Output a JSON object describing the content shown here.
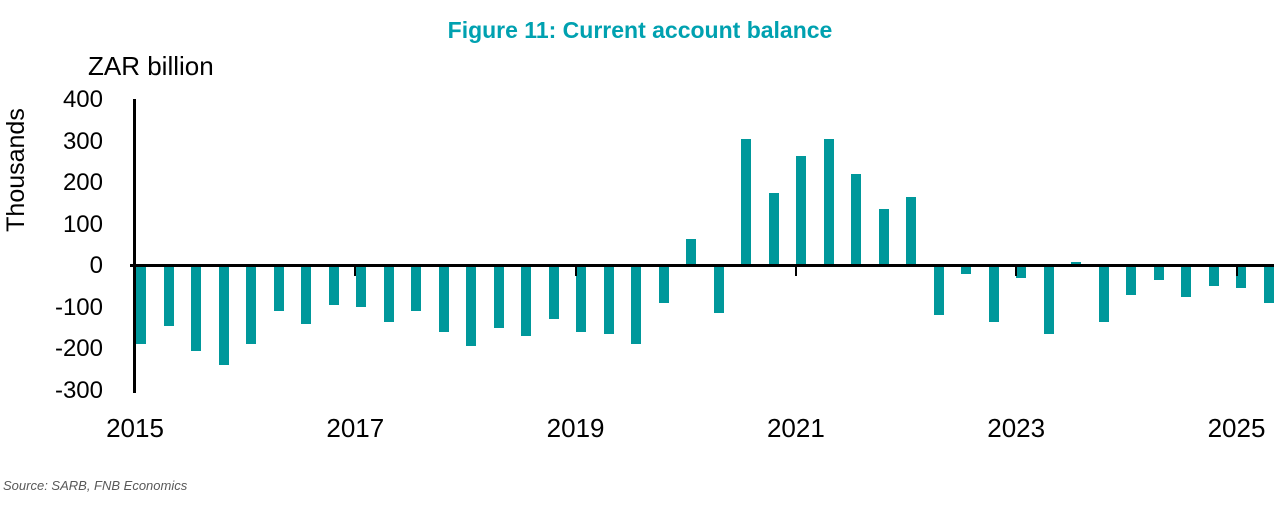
{
  "chart_data": {
    "type": "bar",
    "title": "Figure 11: Current account balance",
    "y_axis_title": "ZAR billion",
    "y_axis_secondary_label": "Thousands",
    "source_note": "Source: SARB, FNB Economics",
    "categories": [
      "2015 Q1",
      "2015 Q2",
      "2015 Q3",
      "2015 Q4",
      "2016 Q1",
      "2016 Q2",
      "2016 Q3",
      "2016 Q4",
      "2017 Q1",
      "2017 Q2",
      "2017 Q3",
      "2017 Q4",
      "2018 Q1",
      "2018 Q2",
      "2018 Q3",
      "2018 Q4",
      "2019 Q1",
      "2019 Q2",
      "2019 Q3",
      "2019 Q4",
      "2020 Q1",
      "2020 Q2",
      "2020 Q3",
      "2020 Q4",
      "2021 Q1",
      "2021 Q2",
      "2021 Q3",
      "2021 Q4",
      "2022 Q1",
      "2022 Q2",
      "2022 Q3",
      "2022 Q4",
      "2023 Q1",
      "2023 Q2",
      "2023 Q3",
      "2023 Q4",
      "2024 Q1",
      "2024 Q2",
      "2024 Q3",
      "2024 Q4",
      "2025 Q1",
      "2025 Q2"
    ],
    "values": [
      -190,
      -145,
      -205,
      -240,
      -190,
      -110,
      -140,
      -95,
      -100,
      -135,
      -110,
      -160,
      -195,
      -150,
      -170,
      -130,
      -160,
      -165,
      -190,
      -90,
      65,
      -115,
      305,
      175,
      265,
      305,
      220,
      135,
      165,
      -120,
      -20,
      -135,
      -30,
      -165,
      8,
      -135,
      -70,
      -35,
      -75,
      -50,
      -55,
      -90
    ],
    "y_ticks": [
      400,
      300,
      200,
      100,
      0,
      -100,
      -200,
      -300
    ],
    "x_tick_labels": [
      "2015",
      "2017",
      "2019",
      "2021",
      "2023",
      "2025"
    ],
    "ylim": [
      -300,
      400
    ],
    "grid": false,
    "legend_position": "none",
    "colors": {
      "bar": "#00989B",
      "title": "#00A1B0",
      "axis": "#000000",
      "tick_text": "#000000",
      "source_text": "#595959"
    }
  }
}
